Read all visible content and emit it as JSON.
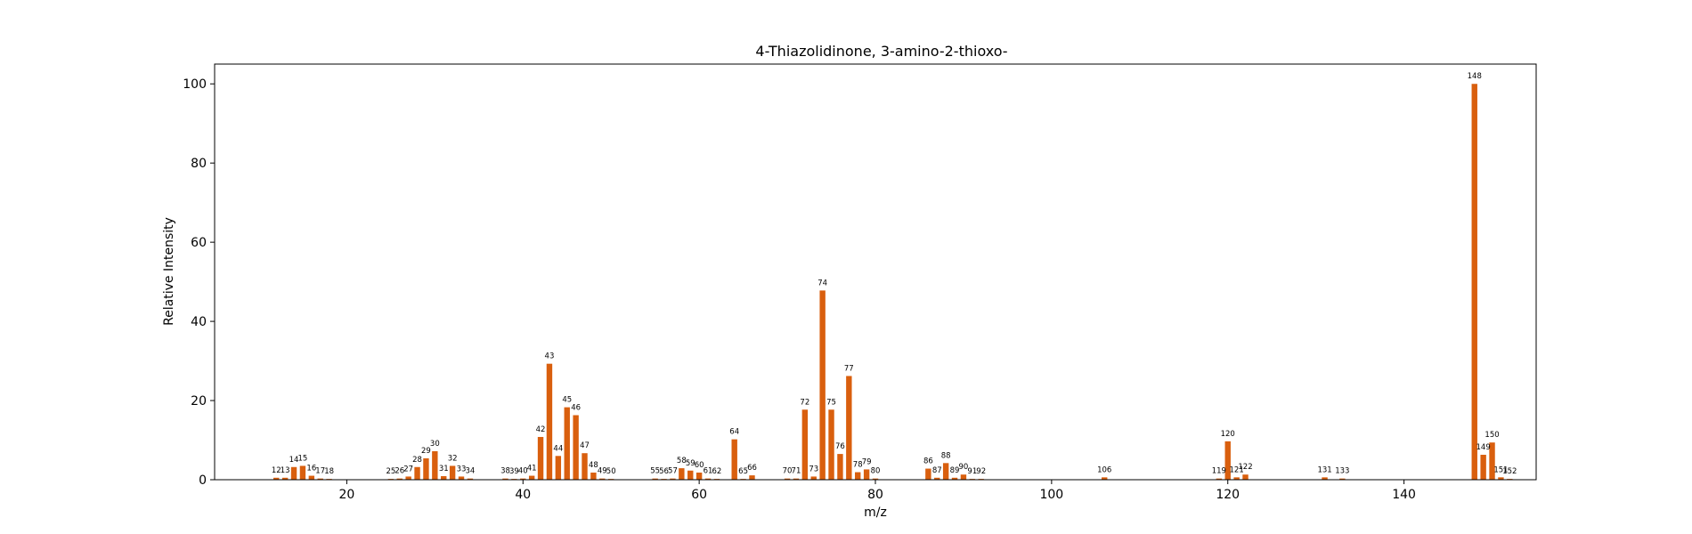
{
  "chart_data": {
    "type": "bar",
    "title": "4-Thiazolidinone, 3-amino-2-thioxo-",
    "xlabel": "m/z",
    "ylabel": "Relative Intensity",
    "xlim": [
      5,
      155
    ],
    "ylim": [
      0,
      105
    ],
    "xticks": [
      20,
      40,
      60,
      80,
      100,
      120,
      140
    ],
    "yticks": [
      0,
      20,
      40,
      60,
      80,
      100
    ],
    "grid": false,
    "bar_color": "#d95f0e",
    "x": [
      12,
      13,
      14,
      15,
      16,
      17,
      18,
      25,
      26,
      27,
      28,
      29,
      30,
      31,
      32,
      33,
      34,
      38,
      39,
      40,
      41,
      42,
      43,
      44,
      45,
      46,
      47,
      48,
      49,
      50,
      55,
      56,
      57,
      58,
      59,
      60,
      61,
      62,
      64,
      65,
      66,
      70,
      71,
      72,
      73,
      74,
      75,
      76,
      77,
      78,
      79,
      80,
      86,
      87,
      88,
      89,
      90,
      91,
      92,
      106,
      119,
      120,
      121,
      122,
      131,
      133,
      148,
      149,
      150,
      151,
      152
    ],
    "values": [
      0.5,
      0.5,
      3.2,
      3.5,
      1.0,
      0.3,
      0.2,
      0.2,
      0.3,
      0.8,
      3.2,
      5.4,
      7.2,
      0.9,
      3.5,
      0.8,
      0.3,
      0.3,
      0.2,
      0.3,
      1.0,
      10.8,
      29.3,
      6.0,
      18.3,
      16.3,
      6.7,
      1.8,
      0.3,
      0.2,
      0.3,
      0.2,
      0.3,
      2.9,
      2.3,
      1.8,
      0.3,
      0.2,
      10.2,
      0.2,
      1.1,
      0.3,
      0.3,
      17.7,
      0.8,
      47.8,
      17.7,
      6.5,
      26.2,
      1.9,
      2.6,
      0.3,
      2.8,
      0.5,
      4.2,
      0.5,
      1.3,
      0.2,
      0.2,
      0.6,
      0.3,
      9.7,
      0.6,
      1.3,
      0.6,
      0.3,
      100.0,
      6.3,
      9.4,
      0.6,
      0.2
    ]
  }
}
